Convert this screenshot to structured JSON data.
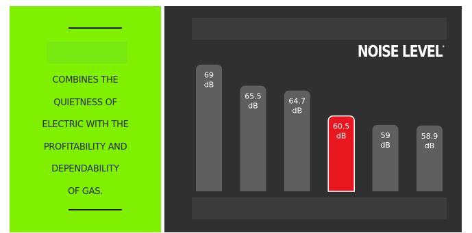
{
  "panel": {
    "lines": [
      "COMBINES THE",
      "QUIETNESS OF",
      "ELECTRIC WITH THE",
      "PROFITABILITY AND",
      "DEPENDABILITY",
      "OF GAS."
    ]
  },
  "colors": {
    "panel_green": "#7ff000",
    "background_dark": "#303030",
    "bar_gray": "#5f5f5f",
    "bar_highlight": "#e8171f",
    "text_white": "#ffffff"
  },
  "chart_data": {
    "type": "bar",
    "title": "NOISE LEVEL",
    "title_mark": "*",
    "unit": "dB",
    "categories": [
      "",
      "",
      "",
      "",
      "",
      ""
    ],
    "values": [
      69,
      65.5,
      64.7,
      60.5,
      59,
      58.9
    ],
    "labels": [
      "69",
      "65.5",
      "64.7",
      "60.5",
      "59",
      "58.9"
    ],
    "highlight_index": 3,
    "ylim": [
      48,
      71
    ],
    "grid": false,
    "legend": "none"
  }
}
